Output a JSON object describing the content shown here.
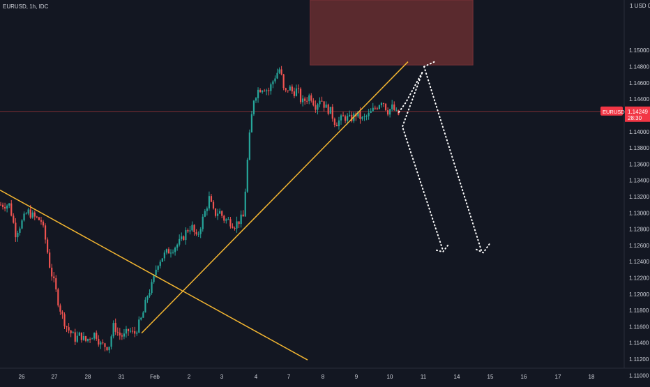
{
  "chart_data": {
    "type": "candlestick",
    "symbol_header": "EURUSD, 1h, IDC",
    "currency_label": "1 USD 0",
    "price_badge": {
      "symbol": "EURUSD",
      "price": "1.14249",
      "countdown": "28:30"
    },
    "current_price": 1.14249,
    "ylim": [
      1.109,
      1.1562
    ],
    "y_ticks": [
      "1.15000",
      "1.14800",
      "1.14600",
      "1.14400",
      "1.14000",
      "1.13800",
      "1.13600",
      "1.13400",
      "1.13200",
      "1.13000",
      "1.12800",
      "1.12600",
      "1.12400",
      "1.12200",
      "1.12000",
      "1.11800",
      "1.11600",
      "1.11400",
      "1.11200",
      "1.11000"
    ],
    "x_ticks": [
      "26",
      "27",
      "28",
      "31",
      "Feb",
      "2",
      "3",
      "4",
      "7",
      "8",
      "9",
      "10",
      "11",
      "14",
      "15",
      "16",
      "17",
      "18"
    ],
    "grid": false,
    "colors": {
      "background": "#131722",
      "bull": "#26a69a",
      "bear": "#ef5350",
      "trendline": "#f5b731",
      "supply_zone": "#5a2a2e",
      "projection": "#ffffff",
      "badge": "#f23645",
      "axis_text": "#d1d4dc"
    },
    "price_path": [
      [
        "26",
        1.131
      ],
      [
        "26",
        1.1275
      ],
      [
        "26",
        1.1288
      ],
      [
        "26",
        1.1302
      ],
      [
        "26",
        1.1295
      ],
      [
        "27",
        1.129
      ],
      [
        "27",
        1.1265
      ],
      [
        "27",
        1.1232
      ],
      [
        "27",
        1.1212
      ],
      [
        "27",
        1.1188
      ],
      [
        "27",
        1.117
      ],
      [
        "27",
        1.1158
      ],
      [
        "28",
        1.1145
      ],
      [
        "28",
        1.115
      ],
      [
        "28",
        1.1142
      ],
      [
        "28",
        1.1148
      ],
      [
        "28",
        1.1152
      ],
      [
        "28",
        1.1138
      ],
      [
        "31",
        1.1135
      ],
      [
        "31",
        1.1162
      ],
      [
        "31",
        1.115
      ],
      [
        "31",
        1.1148
      ],
      [
        "31",
        1.1156
      ],
      [
        "31",
        1.115
      ],
      [
        "Feb",
        1.1172
      ],
      [
        "Feb",
        1.1198
      ],
      [
        "Feb",
        1.1212
      ],
      [
        "Feb",
        1.1238
      ],
      [
        "Feb",
        1.1246
      ],
      [
        "Feb",
        1.1252
      ],
      [
        "2",
        1.126
      ],
      [
        "2",
        1.1266
      ],
      [
        "2",
        1.1278
      ],
      [
        "2",
        1.1284
      ],
      [
        "2",
        1.1268
      ],
      [
        "2",
        1.1288
      ],
      [
        "3",
        1.1318
      ],
      [
        "3",
        1.1298
      ],
      [
        "3",
        1.1302
      ],
      [
        "3",
        1.1292
      ],
      [
        "3",
        1.129
      ],
      [
        "3",
        1.1285
      ],
      [
        "4",
        1.1295
      ],
      [
        "4",
        1.138
      ],
      [
        "4",
        1.144
      ],
      [
        "4",
        1.1452
      ],
      [
        "4",
        1.1455
      ],
      [
        "4",
        1.145
      ],
      [
        "7",
        1.147
      ],
      [
        "7",
        1.1478
      ],
      [
        "7",
        1.1445
      ],
      [
        "7",
        1.1455
      ],
      [
        "7",
        1.1448
      ],
      [
        "7",
        1.1452
      ],
      [
        "7",
        1.1435
      ],
      [
        "8",
        1.1445
      ],
      [
        "8",
        1.1432
      ],
      [
        "8",
        1.1442
      ],
      [
        "8",
        1.143
      ],
      [
        "8",
        1.1425
      ],
      [
        "8",
        1.141
      ],
      [
        "9",
        1.1418
      ],
      [
        "9",
        1.1415
      ],
      [
        "9",
        1.1422
      ],
      [
        "9",
        1.1415
      ],
      [
        "9",
        1.142
      ],
      [
        "10",
        1.1432
      ],
      [
        "10",
        1.144
      ],
      [
        "10",
        1.1425
      ],
      [
        "10",
        1.143
      ],
      [
        "10",
        1.142
      ],
      [
        "10",
        1.1425
      ]
    ],
    "annotations": {
      "descending_trendline": [
        [
          "25",
          1.1328
        ],
        [
          "8",
          1.1119
        ]
      ],
      "ascending_trendline": [
        [
          "31",
          1.1152
        ],
        [
          "11",
          1.1486
        ]
      ],
      "supply_zone": {
        "x": [
          "8",
          "14"
        ],
        "y": [
          1.1482,
          1.1562
        ]
      },
      "projection_path_1": [
        [
          "10",
          1.1425
        ],
        [
          "11",
          1.1462
        ],
        [
          "14",
          1.1254
        ]
      ],
      "projection_path_2": [
        [
          "11",
          1.148
        ],
        [
          "15",
          1.1254
        ]
      ]
    }
  }
}
